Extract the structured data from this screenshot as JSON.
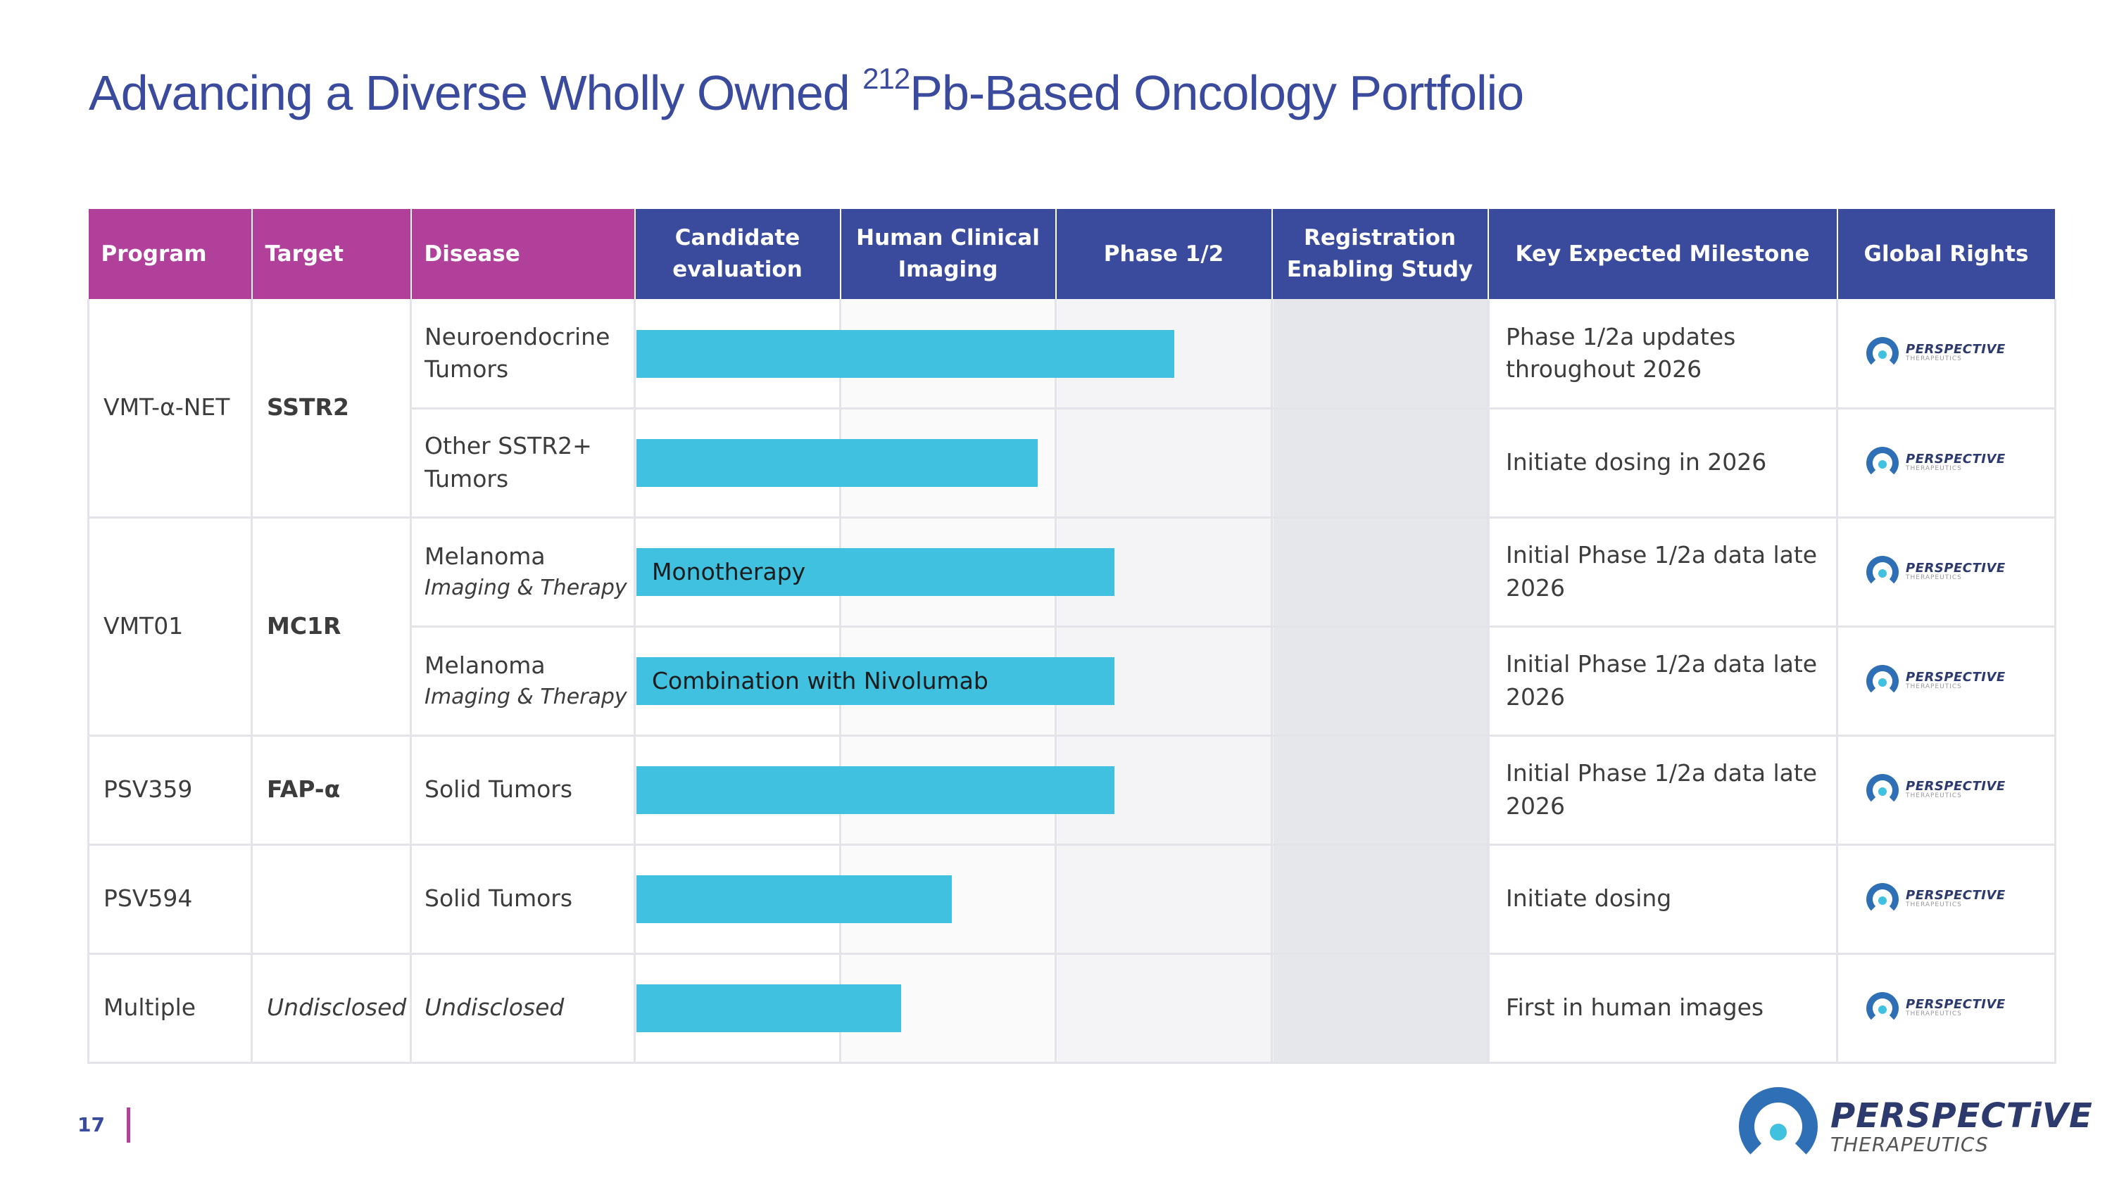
{
  "title": {
    "prefix": "Advancing a Diverse Wholly Owned ",
    "superscript": "212",
    "suffix": "Pb-Based Oncology Portfolio"
  },
  "headers": {
    "program": "Program",
    "target": "Target",
    "disease": "Disease",
    "stage1": "Candidate evaluation",
    "stage2": "Human Clinical Imaging",
    "stage3": "Phase 1/2",
    "stage4": "Registration Enabling Study",
    "milestone": "Key Expected Milestone",
    "rights": "Global Rights"
  },
  "programs": [
    {
      "program": "VMT-α-NET",
      "target": "SSTR2"
    },
    {
      "program": "VMT01",
      "target": "MC1R"
    },
    {
      "program": "PSV359",
      "target": "FAP-α"
    },
    {
      "program": "PSV594",
      "target": ""
    },
    {
      "program": "Multiple",
      "target": "Undisclosed"
    }
  ],
  "rows": [
    {
      "disease": "Neuroendocrine Tumors",
      "disease_sub": "",
      "bar_label": "",
      "progress": 0.63,
      "milestone": "Phase 1/2a updates throughout 2026"
    },
    {
      "disease": "Other SSTR2+ Tumors",
      "disease_sub": "",
      "bar_label": "",
      "progress": 0.47,
      "milestone": "Initiate dosing in 2026"
    },
    {
      "disease": "Melanoma",
      "disease_sub": "Imaging & Therapy",
      "bar_label": "Monotherapy",
      "progress": 0.56,
      "milestone": "Initial Phase 1/2a data late 2026"
    },
    {
      "disease": "Melanoma",
      "disease_sub": "Imaging & Therapy",
      "bar_label": "Combination with Nivolumab",
      "progress": 0.56,
      "milestone": "Initial Phase 1/2a data late 2026"
    },
    {
      "disease": "Solid Tumors",
      "disease_sub": "",
      "bar_label": "",
      "progress": 0.56,
      "milestone": "Initial Phase 1/2a data late 2026"
    },
    {
      "disease": "Solid Tumors",
      "disease_sub": "",
      "bar_label": "",
      "progress": 0.37,
      "milestone": "Initiate dosing"
    },
    {
      "disease": "Undisclosed",
      "disease_sub": "",
      "bar_label": "",
      "progress": 0.31,
      "milestone": "First in human images"
    }
  ],
  "rights_logo": {
    "word1": "PERSPECTIVE",
    "word2": "THERAPEUTICS"
  },
  "footer": {
    "page_number": "17",
    "logo_word1": "PERSPECTiVE",
    "logo_word2": "THERAPEUTICS"
  },
  "colors": {
    "title": "#3a4a9c",
    "header_pink": "#b0409a",
    "header_navy": "#3a4a9c",
    "bar": "#3fc1df",
    "logo_blue": "#2f6fb5"
  }
}
